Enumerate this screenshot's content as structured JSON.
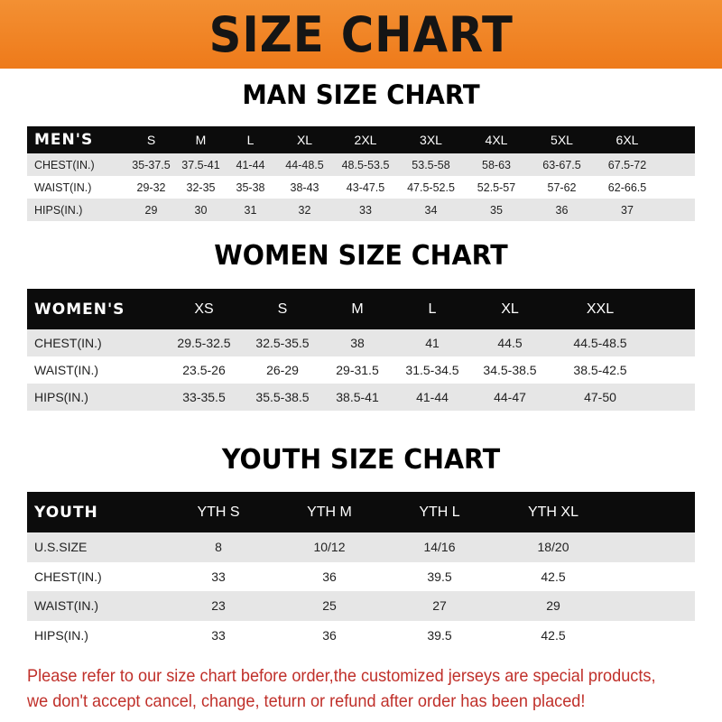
{
  "banner": {
    "title": "SIZE CHART",
    "color": "#ee7a1a"
  },
  "men": {
    "title": "MAN SIZE CHART",
    "header": [
      "MEN'S",
      "S",
      "M",
      "L",
      "XL",
      "2XL",
      "3XL",
      "4XL",
      "5XL",
      "6XL"
    ],
    "rows": [
      [
        "CHEST(IN.)",
        "35-37.5",
        "37.5-41",
        "41-44",
        "44-48.5",
        "48.5-53.5",
        "53.5-58",
        "58-63",
        "63-67.5",
        "67.5-72"
      ],
      [
        "WAIST(IN.)",
        "29-32",
        "32-35",
        "35-38",
        "38-43",
        "43-47.5",
        "47.5-52.5",
        "52.5-57",
        "57-62",
        "62-66.5"
      ],
      [
        "HIPS(IN.)",
        "29",
        "30",
        "31",
        "32",
        "33",
        "34",
        "35",
        "36",
        "37"
      ]
    ]
  },
  "women": {
    "title": "WOMEN SIZE CHART",
    "header": [
      "WOMEN'S",
      "XS",
      "S",
      "M",
      "L",
      "XL",
      "XXL"
    ],
    "rows": [
      [
        "CHEST(IN.)",
        "29.5-32.5",
        "32.5-35.5",
        "38",
        "41",
        "44.5",
        "44.5-48.5"
      ],
      [
        "WAIST(IN.)",
        "23.5-26",
        "26-29",
        "29-31.5",
        "31.5-34.5",
        "34.5-38.5",
        "38.5-42.5"
      ],
      [
        "HIPS(IN.)",
        "33-35.5",
        "35.5-38.5",
        "38.5-41",
        "41-44",
        "44-47",
        "47-50"
      ]
    ]
  },
  "youth": {
    "title": "YOUTH SIZE CHART",
    "header": [
      "YOUTH",
      "YTH S",
      "YTH M",
      "YTH L",
      "YTH XL"
    ],
    "rows": [
      [
        "U.S.SIZE",
        "8",
        "10/12",
        "14/16",
        "18/20"
      ],
      [
        "CHEST(IN.)",
        "33",
        "36",
        "39.5",
        "42.5"
      ],
      [
        "WAIST(IN.)",
        "23",
        "25",
        "27",
        "29"
      ],
      [
        "HIPS(IN.)",
        "33",
        "36",
        "39.5",
        "42.5"
      ]
    ]
  },
  "note": {
    "line1": "Please refer to our size chart before order,the customized jerseys are special products,",
    "line2": "we don't accept cancel, change, teturn or refund after order has been placed!",
    "color": "#c0302a"
  }
}
